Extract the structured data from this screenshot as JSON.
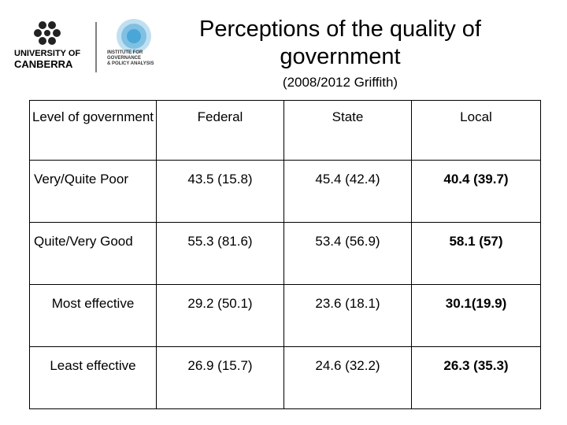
{
  "logo": {
    "university": [
      "UNIVERSITY OF",
      "CANBERRA"
    ],
    "institute": [
      "INSTITUTE FOR",
      "GOVERNANCE",
      "& POLICY ANALYSIS"
    ]
  },
  "header": {
    "title": "Perceptions of the quality of government",
    "subtitle": "(2008/2012 Griffith)"
  },
  "table": {
    "columns": [
      "Level of government",
      "Federal",
      "State",
      "Local"
    ],
    "rows": [
      [
        "Very/Quite Poor",
        "43.5 (15.8)",
        "45.4 (42.4)",
        "40.4 (39.7)"
      ],
      [
        "Quite/Very Good",
        "55.3 (81.6)",
        "53.4 (56.9)",
        "58.1 (57)"
      ],
      [
        "Most effective",
        "29.2 (50.1)",
        "23.6 (18.1)",
        "30.1(19.9)"
      ],
      [
        "Least effective",
        "26.9 (15.7)",
        "24.6 (32.2)",
        "26.3 (35.3)"
      ]
    ]
  }
}
